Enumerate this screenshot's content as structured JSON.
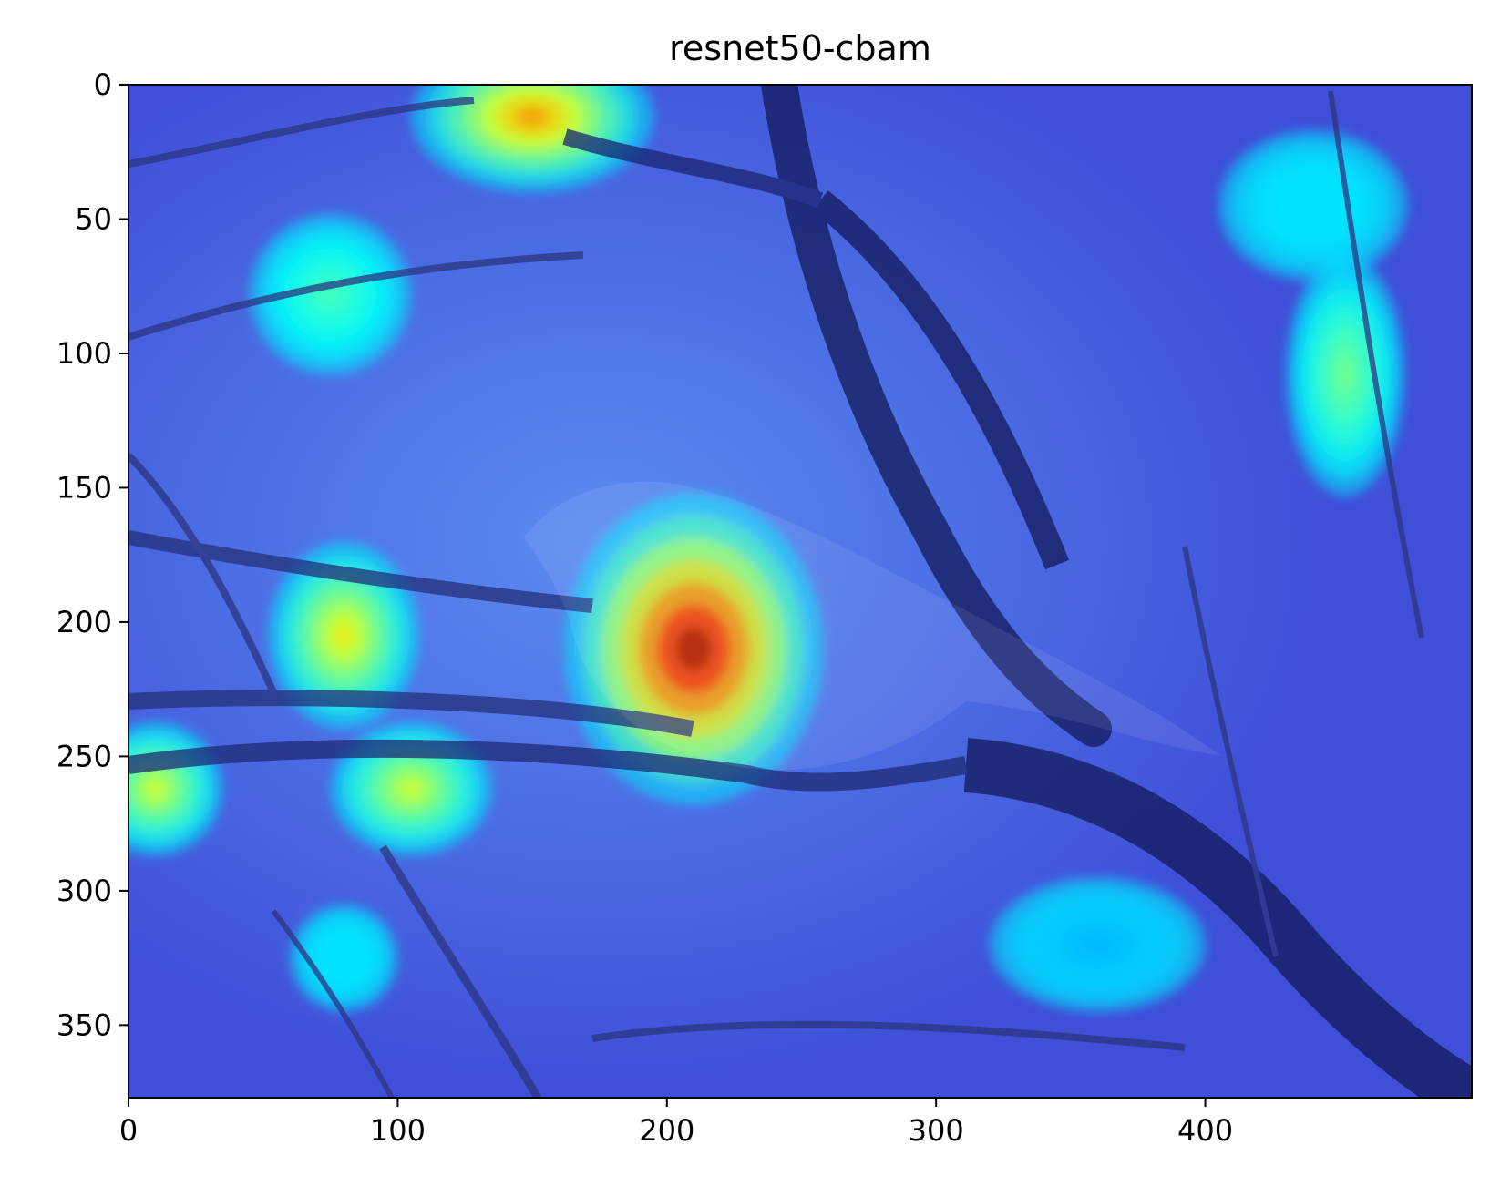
{
  "chart_data": {
    "type": "heatmap",
    "title": "resnet50-cbam",
    "xlabel": "",
    "ylabel": "",
    "xlim": [
      0,
      499
    ],
    "ylim": [
      377,
      0
    ],
    "x_ticks": [
      0,
      100,
      200,
      300,
      400
    ],
    "y_ticks": [
      0,
      50,
      100,
      150,
      200,
      250,
      300,
      350
    ],
    "colormap": "jet",
    "image_content": "Grad-CAM heatmap overlaid on a photo of a small bird perched on bare branches",
    "hotspots": [
      {
        "x": 210,
        "y": 210,
        "rx": 48,
        "ry": 58,
        "intensity": 1.0
      },
      {
        "x": 150,
        "y": 12,
        "rx": 45,
        "ry": 28,
        "intensity": 0.75
      },
      {
        "x": 80,
        "y": 205,
        "rx": 28,
        "ry": 35,
        "intensity": 0.65
      },
      {
        "x": 105,
        "y": 262,
        "rx": 30,
        "ry": 25,
        "intensity": 0.6
      },
      {
        "x": 10,
        "y": 262,
        "rx": 25,
        "ry": 25,
        "intensity": 0.6
      },
      {
        "x": 75,
        "y": 78,
        "rx": 30,
        "ry": 30,
        "intensity": 0.45
      },
      {
        "x": 452,
        "y": 108,
        "rx": 22,
        "ry": 45,
        "intensity": 0.5
      },
      {
        "x": 440,
        "y": 45,
        "rx": 35,
        "ry": 28,
        "intensity": 0.35
      },
      {
        "x": 80,
        "y": 325,
        "rx": 20,
        "ry": 20,
        "intensity": 0.35
      },
      {
        "x": 360,
        "y": 320,
        "rx": 40,
        "ry": 25,
        "intensity": 0.3
      }
    ]
  }
}
